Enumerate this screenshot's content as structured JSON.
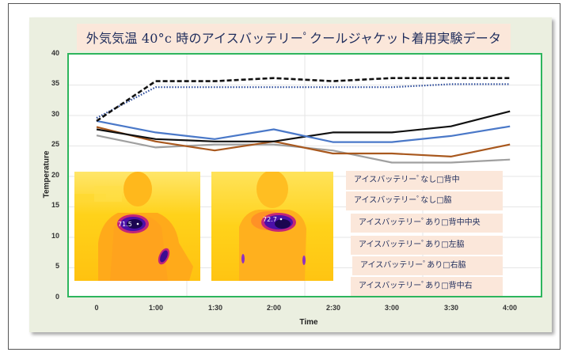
{
  "chart_data": {
    "type": "line",
    "title": "外気気温 40°c 時のアイスバッテリーﾟクールジャケット着用実験データ",
    "xlabel": "Time",
    "ylabel": "Temperature",
    "ylim": [
      0,
      40
    ],
    "yticks": [
      "0",
      "5",
      "10",
      "15",
      "20",
      "25",
      "30",
      "35",
      "40"
    ],
    "categories": [
      "0",
      "1:00",
      "1:30",
      "2:00",
      "2:30",
      "3:00",
      "3:30",
      "4:00"
    ],
    "grid": true,
    "legend_position": "inside-bottom-right",
    "series": [
      {
        "name": "アイスバッテリーﾟなし□背中",
        "style": "dashed",
        "color": "#111111",
        "values": [
          29.0,
          35.6,
          35.6,
          36.1,
          35.6,
          36.1,
          36.1,
          36.1
        ]
      },
      {
        "name": "アイスバッテリーﾟなし□脇",
        "style": "dotted",
        "color": "#2a4a9a",
        "values": [
          29.5,
          34.6,
          34.6,
          34.6,
          34.6,
          34.6,
          35.1,
          35.1
        ]
      },
      {
        "name": "アイスバッテリーﾟあり□背中中央",
        "style": "solid",
        "color": "#111111",
        "values": [
          27.6,
          26.0,
          25.6,
          25.6,
          27.1,
          27.1,
          28.1,
          30.6
        ]
      },
      {
        "name": "アイスバッテリーﾟあり□左脇",
        "style": "solid",
        "color": "#4a78c8",
        "values": [
          29.0,
          27.1,
          26.0,
          27.6,
          25.5,
          25.5,
          26.5,
          28.1
        ]
      },
      {
        "name": "アイスバッテリーﾟあり□右脇",
        "style": "solid",
        "color": "#a8581e",
        "values": [
          28.0,
          25.6,
          24.1,
          25.6,
          23.6,
          23.6,
          23.1,
          25.1
        ]
      },
      {
        "name": "アイスバッテリーﾟあり□背中右",
        "style": "solid",
        "color": "#a0a0a0",
        "values": [
          26.6,
          24.6,
          25.1,
          25.1,
          24.1,
          22.1,
          22.1,
          22.6
        ]
      }
    ],
    "annotations": [
      "71.5",
      "72.7"
    ]
  },
  "header": {
    "title": "外気気温 40°c 時のアイスバッテリーﾟクールジャケット着用実験データ"
  },
  "axes": {
    "x_label": "Time",
    "y_label": "Temperature",
    "x_ticks": [
      "0",
      "1:00",
      "1:30",
      "2:00",
      "2:30",
      "3:00",
      "3:30",
      "4:00"
    ],
    "y_ticks": [
      "40",
      "35",
      "30",
      "25",
      "20",
      "15",
      "10",
      "5",
      "0"
    ]
  },
  "images": [
    {
      "name": "thermal-image-without-battery",
      "reading": "71.5"
    },
    {
      "name": "thermal-image-with-battery",
      "reading": "72.7"
    }
  ],
  "legend": [
    "アイスバッテリーﾟなし□背中",
    "アイスバッテリーﾟなし□脇",
    "アイスバッテリーﾟあり□背中中央",
    "アイスバッテリーﾟあり□左脇",
    "アイスバッテリーﾟあり□右脇",
    "アイスバッテリーﾟあり□背中右"
  ],
  "colors": {
    "plot_border": "#2db55d",
    "panel_bg": "#ebefe0",
    "title_bg": "#fbe7da",
    "title_text": "#1f2d5c"
  }
}
